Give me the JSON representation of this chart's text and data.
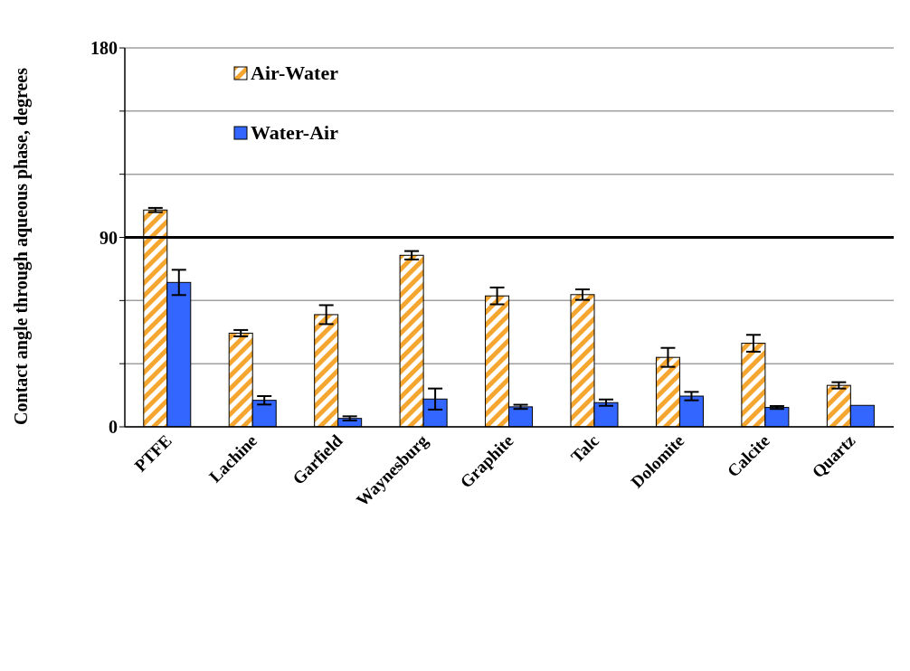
{
  "chart_data": {
    "type": "bar",
    "ylabel": "Contact angle through aqueous phase, degrees",
    "categories": [
      "PTFE",
      "Lachine",
      "Garfield",
      "Waynesburg",
      "Graphite",
      "Talc",
      "Dolomite",
      "Calcite",
      "Quartz"
    ],
    "series": [
      {
        "name": "Air-Water",
        "color": "#f5a631",
        "values": [
          103,
          44.5,
          53.3,
          81.5,
          62.2,
          62.8,
          33,
          39.7,
          19.7
        ],
        "errors": [
          1,
          1.5,
          4.5,
          2,
          4,
          2.5,
          4.5,
          4,
          1.5
        ]
      },
      {
        "name": "Water-Air",
        "color": "#3366ff",
        "values": [
          68.6,
          12.6,
          4,
          13.2,
          9.5,
          11.5,
          14.6,
          9.2,
          10.2
        ],
        "errors": [
          6,
          2,
          1,
          5,
          1,
          1.5,
          2,
          0.7,
          null
        ]
      }
    ],
    "ylim": [
      0,
      180
    ],
    "yticks": [
      0,
      {
        "value": 30,
        "label": null
      },
      {
        "value": 60,
        "label": null
      },
      90,
      {
        "value": 120,
        "label": null
      },
      {
        "value": 150,
        "label": null
      },
      180
    ],
    "grid": "y",
    "legend": "top left",
    "ref_lines": [
      {
        "axis": "y",
        "value": 90,
        "color": "#000000"
      }
    ]
  }
}
